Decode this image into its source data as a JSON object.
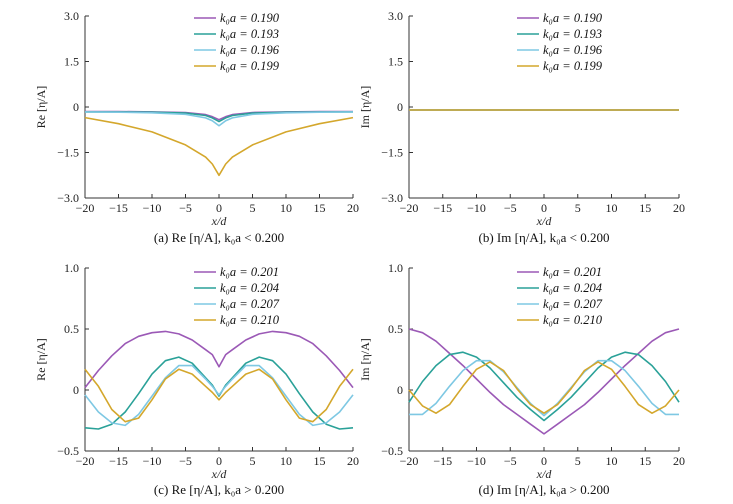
{
  "chart_data": [
    {
      "type": "line",
      "id": "a",
      "caption": "(a) Re [η/A],  k₀a < 0.200",
      "xlabel": "x/d",
      "ylabel": "Re [η/A]",
      "xlim": [
        -20,
        20
      ],
      "ylim": [
        -3.0,
        3.0
      ],
      "xticks": [
        "−20",
        "−15",
        "−10",
        "−5",
        "0",
        "5",
        "10",
        "15",
        "20"
      ],
      "yticks": [
        "−3.0",
        "−1.5",
        "0",
        "1.5",
        "3.0"
      ],
      "x": [
        -20,
        -15,
        -10,
        -5,
        -2,
        -1,
        0,
        1,
        2,
        5,
        10,
        15,
        20
      ],
      "series": [
        {
          "name": "k₀a = 0.190",
          "color": "#9b59b6",
          "values": [
            -0.15,
            -0.15,
            -0.16,
            -0.18,
            -0.25,
            -0.32,
            -0.42,
            -0.32,
            -0.25,
            -0.18,
            -0.16,
            -0.15,
            -0.15
          ]
        },
        {
          "name": "k₀a = 0.193",
          "color": "#2aa198",
          "values": [
            -0.16,
            -0.16,
            -0.17,
            -0.2,
            -0.28,
            -0.36,
            -0.48,
            -0.36,
            -0.28,
            -0.2,
            -0.17,
            -0.16,
            -0.16
          ]
        },
        {
          "name": "k₀a = 0.196",
          "color": "#7ec8e3",
          "values": [
            -0.16,
            -0.17,
            -0.19,
            -0.24,
            -0.36,
            -0.45,
            -0.62,
            -0.45,
            -0.36,
            -0.24,
            -0.19,
            -0.17,
            -0.16
          ]
        },
        {
          "name": "k₀a = 0.199",
          "color": "#d4a72c",
          "values": [
            -0.35,
            -0.55,
            -0.82,
            -1.25,
            -1.65,
            -1.88,
            -2.25,
            -1.88,
            -1.65,
            -1.25,
            -0.82,
            -0.55,
            -0.35
          ]
        }
      ]
    },
    {
      "type": "line",
      "id": "b",
      "caption": "(b) Im [η/A],  k₀a < 0.200",
      "xlabel": "x/d",
      "ylabel": "Im [η/A]",
      "xlim": [
        -20,
        20
      ],
      "ylim": [
        -3.0,
        3.0
      ],
      "xticks": [
        "−20",
        "−15",
        "−10",
        "−5",
        "0",
        "5",
        "10",
        "15",
        "20"
      ],
      "yticks": [
        "−3.0",
        "−1.5",
        "0",
        "1.5",
        "3.0"
      ],
      "x": [
        -20,
        20
      ],
      "series": [
        {
          "name": "k₀a = 0.190",
          "color": "#9b59b6",
          "values": [
            -0.1,
            -0.1
          ]
        },
        {
          "name": "k₀a = 0.193",
          "color": "#2aa198",
          "values": [
            -0.1,
            -0.1
          ]
        },
        {
          "name": "k₀a = 0.196",
          "color": "#7ec8e3",
          "values": [
            -0.1,
            -0.1
          ]
        },
        {
          "name": "k₀a = 0.199",
          "color": "#d4a72c",
          "values": [
            -0.1,
            -0.1
          ]
        }
      ]
    },
    {
      "type": "line",
      "id": "c",
      "caption": "(c) Re [η/A],  k₀a > 0.200",
      "xlabel": "x/d",
      "ylabel": "Re [η/A]",
      "xlim": [
        -20,
        20
      ],
      "ylim": [
        -0.5,
        1.0
      ],
      "xticks": [
        "−20",
        "−15",
        "−10",
        "−5",
        "0",
        "5",
        "10",
        "15",
        "20"
      ],
      "yticks": [
        "−0.5",
        "0",
        "0.5",
        "1.0"
      ],
      "x": [
        -20,
        -18,
        -16,
        -14,
        -12,
        -10,
        -8,
        -6,
        -4,
        -2,
        -1,
        0,
        1,
        2,
        4,
        6,
        8,
        10,
        12,
        14,
        16,
        18,
        20
      ],
      "series": [
        {
          "name": "k₀a = 0.201",
          "color": "#9b59b6",
          "values": [
            0.02,
            0.16,
            0.28,
            0.38,
            0.44,
            0.47,
            0.48,
            0.46,
            0.41,
            0.33,
            0.29,
            0.19,
            0.29,
            0.33,
            0.41,
            0.46,
            0.48,
            0.47,
            0.44,
            0.38,
            0.28,
            0.16,
            0.02
          ]
        },
        {
          "name": "k₀a = 0.204",
          "color": "#2aa198",
          "values": [
            -0.31,
            -0.32,
            -0.28,
            -0.18,
            -0.03,
            0.13,
            0.24,
            0.27,
            0.22,
            0.1,
            0.04,
            -0.05,
            0.04,
            0.1,
            0.22,
            0.27,
            0.24,
            0.13,
            -0.03,
            -0.18,
            -0.28,
            -0.32,
            -0.31
          ]
        },
        {
          "name": "k₀a = 0.207",
          "color": "#7ec8e3",
          "values": [
            -0.04,
            -0.18,
            -0.27,
            -0.29,
            -0.2,
            -0.05,
            0.1,
            0.2,
            0.2,
            0.09,
            0.03,
            -0.04,
            0.03,
            0.09,
            0.2,
            0.2,
            0.1,
            -0.05,
            -0.2,
            -0.29,
            -0.27,
            -0.18,
            -0.04
          ]
        },
        {
          "name": "k₀a = 0.210",
          "color": "#d4a72c",
          "values": [
            0.17,
            0.03,
            -0.16,
            -0.26,
            -0.23,
            -0.08,
            0.09,
            0.17,
            0.13,
            0.03,
            -0.02,
            -0.08,
            -0.02,
            0.03,
            0.13,
            0.17,
            0.09,
            -0.08,
            -0.23,
            -0.26,
            -0.16,
            0.03,
            0.17
          ]
        }
      ]
    },
    {
      "type": "line",
      "id": "d",
      "caption": "(d) Im [η/A],  k₀a > 0.200",
      "xlabel": "x/d",
      "ylabel": "Im [η/A]",
      "xlim": [
        -20,
        20
      ],
      "ylim": [
        -0.5,
        1.0
      ],
      "xticks": [
        "−20",
        "−15",
        "−10",
        "−5",
        "0",
        "5",
        "10",
        "15",
        "20"
      ],
      "yticks": [
        "−0.5",
        "0",
        "0.5",
        "1.0"
      ],
      "x": [
        -20,
        -18,
        -16,
        -14,
        -12,
        -10,
        -8,
        -6,
        -4,
        -2,
        0,
        2,
        4,
        6,
        8,
        10,
        12,
        14,
        16,
        18,
        20
      ],
      "series": [
        {
          "name": "k₀a = 0.201",
          "color": "#9b59b6",
          "values": [
            0.5,
            0.47,
            0.4,
            0.3,
            0.2,
            0.09,
            -0.02,
            -0.12,
            -0.2,
            -0.28,
            -0.36,
            -0.28,
            -0.2,
            -0.12,
            -0.02,
            0.09,
            0.2,
            0.3,
            0.4,
            0.47,
            0.5
          ]
        },
        {
          "name": "k₀a = 0.204",
          "color": "#2aa198",
          "values": [
            -0.1,
            0.07,
            0.2,
            0.29,
            0.31,
            0.27,
            0.18,
            0.06,
            -0.06,
            -0.16,
            -0.25,
            -0.16,
            -0.06,
            0.06,
            0.18,
            0.27,
            0.31,
            0.29,
            0.2,
            0.07,
            -0.1
          ]
        },
        {
          "name": "k₀a = 0.207",
          "color": "#7ec8e3",
          "values": [
            -0.2,
            -0.2,
            -0.11,
            0.03,
            0.16,
            0.24,
            0.24,
            0.15,
            0.02,
            -0.11,
            -0.21,
            -0.11,
            0.02,
            0.15,
            0.24,
            0.24,
            0.16,
            0.03,
            -0.11,
            -0.2,
            -0.2
          ]
        },
        {
          "name": "k₀a = 0.210",
          "color": "#d4a72c",
          "values": [
            0.0,
            -0.13,
            -0.19,
            -0.12,
            0.03,
            0.17,
            0.23,
            0.16,
            0.01,
            -0.12,
            -0.19,
            -0.12,
            0.01,
            0.16,
            0.23,
            0.17,
            0.03,
            -0.12,
            -0.19,
            -0.13,
            0.0
          ]
        }
      ]
    }
  ]
}
